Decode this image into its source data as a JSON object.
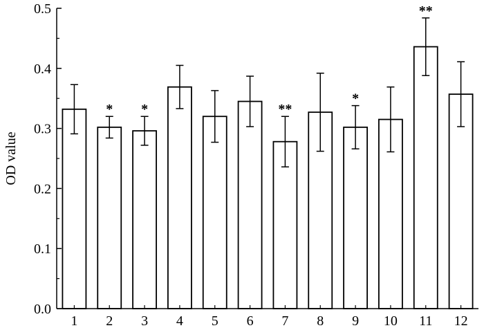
{
  "chart_data": {
    "type": "bar",
    "title": "",
    "xlabel": "",
    "ylabel": "OD value",
    "ylim": [
      0,
      0.5
    ],
    "yticks": [
      "0.0",
      "0.1",
      "0.2",
      "0.3",
      "0.4",
      "0.5"
    ],
    "grid": false,
    "legend": "none",
    "bar_fill": "#ffffff",
    "bar_stroke": "#000000",
    "categories": [
      "1",
      "2",
      "3",
      "4",
      "5",
      "6",
      "7",
      "8",
      "9",
      "10",
      "11",
      "12"
    ],
    "values": [
      0.332,
      0.302,
      0.296,
      0.369,
      0.32,
      0.345,
      0.278,
      0.327,
      0.302,
      0.315,
      0.436,
      0.357
    ],
    "error": [
      0.041,
      0.018,
      0.024,
      0.036,
      0.043,
      0.042,
      0.042,
      0.065,
      0.036,
      0.054,
      0.048,
      0.054
    ],
    "significance": [
      "",
      "*",
      "*",
      "",
      "",
      "",
      "**",
      "",
      "*",
      "",
      "**",
      ""
    ]
  }
}
